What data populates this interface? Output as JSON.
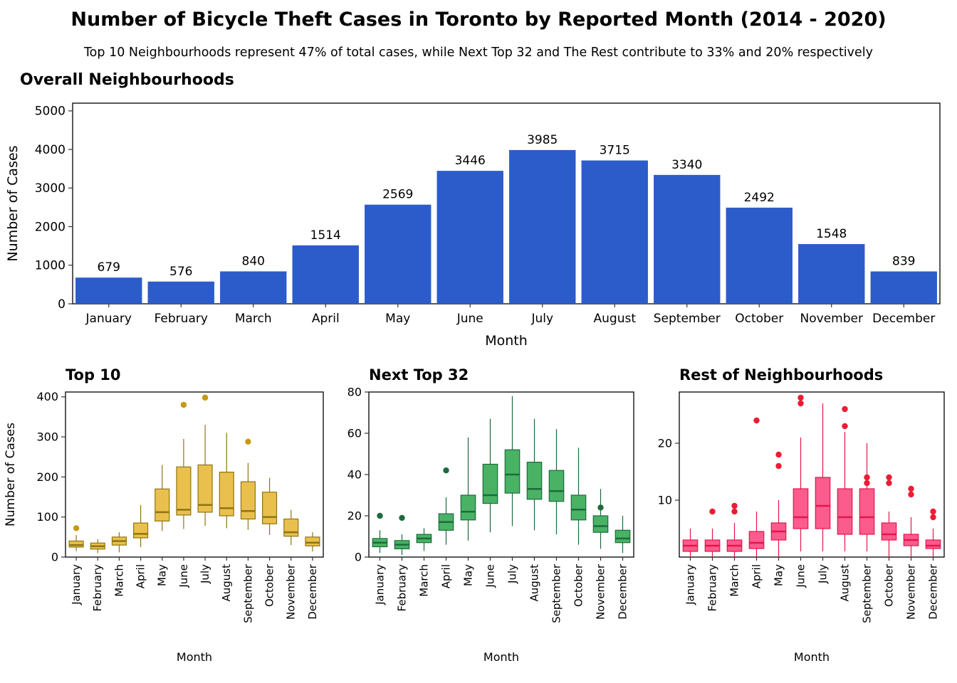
{
  "page": {
    "title": "Number of Bicycle Theft Cases in Toronto by Reported Month (2014 - 2020)",
    "subtitle": "Top 10 Neighbourhoods represent 47% of total cases, while Next Top 32 and The Rest contribute to 33% and 20% respectively"
  },
  "chart_data": [
    {
      "type": "bar",
      "title": "Overall Neighbourhoods",
      "categories": [
        "January",
        "February",
        "March",
        "April",
        "May",
        "June",
        "July",
        "August",
        "September",
        "October",
        "November",
        "December"
      ],
      "values": [
        679,
        576,
        840,
        1514,
        2569,
        3446,
        3985,
        3715,
        3340,
        2492,
        1548,
        839
      ],
      "xlabel": "Month",
      "ylabel": "Number of Cases",
      "ylim": [
        0,
        5200
      ],
      "yticks": [
        0,
        1000,
        2000,
        3000,
        4000,
        5000
      ],
      "bar_color": "#2b5cc9",
      "grid": false,
      "legend": "none"
    },
    {
      "type": "box",
      "title": "Top 10",
      "categories": [
        "January",
        "February",
        "March",
        "April",
        "May",
        "June",
        "July",
        "August",
        "September",
        "October",
        "November",
        "December"
      ],
      "xlabel": "Month",
      "ylabel": "Number of Cases",
      "ylim": [
        0,
        412
      ],
      "yticks": [
        0,
        100,
        200,
        300,
        400
      ],
      "fill": "#e9c04e",
      "stroke": "#8f7512",
      "point_color": "#c59a13",
      "stats": [
        {
          "low": 15,
          "q1": 25,
          "median": 30,
          "q3": 40,
          "high": 55,
          "outliers": [
            72
          ]
        },
        {
          "low": 10,
          "q1": 20,
          "median": 27,
          "q3": 35,
          "high": 45,
          "outliers": []
        },
        {
          "low": 12,
          "q1": 30,
          "median": 40,
          "q3": 50,
          "high": 62,
          "outliers": []
        },
        {
          "low": 25,
          "q1": 48,
          "median": 58,
          "q3": 85,
          "high": 130,
          "outliers": []
        },
        {
          "low": 65,
          "q1": 90,
          "median": 112,
          "q3": 170,
          "high": 230,
          "outliers": []
        },
        {
          "low": 70,
          "q1": 105,
          "median": 118,
          "q3": 225,
          "high": 295,
          "outliers": [
            380
          ]
        },
        {
          "low": 78,
          "q1": 112,
          "median": 130,
          "q3": 230,
          "high": 330,
          "outliers": [
            398
          ]
        },
        {
          "low": 72,
          "q1": 103,
          "median": 122,
          "q3": 212,
          "high": 310,
          "outliers": []
        },
        {
          "low": 68,
          "q1": 95,
          "median": 115,
          "q3": 188,
          "high": 235,
          "outliers": [
            288
          ]
        },
        {
          "low": 55,
          "q1": 83,
          "median": 100,
          "q3": 162,
          "high": 198,
          "outliers": []
        },
        {
          "low": 30,
          "q1": 52,
          "median": 62,
          "q3": 95,
          "high": 118,
          "outliers": []
        },
        {
          "low": 14,
          "q1": 28,
          "median": 36,
          "q3": 50,
          "high": 62,
          "outliers": []
        }
      ]
    },
    {
      "type": "box",
      "title": "Next Top 32",
      "categories": [
        "January",
        "February",
        "March",
        "April",
        "May",
        "June",
        "July",
        "August",
        "September",
        "October",
        "November",
        "December"
      ],
      "xlabel": "Month",
      "ylabel": "",
      "ylim": [
        0,
        80
      ],
      "yticks": [
        0,
        20,
        40,
        60,
        80
      ],
      "fill": "#49b265",
      "stroke": "#1d6b3c",
      "point_color": "#1d6b3c",
      "stats": [
        {
          "low": 2,
          "q1": 5,
          "median": 7,
          "q3": 9,
          "high": 13,
          "outliers": [
            20
          ]
        },
        {
          "low": 1,
          "q1": 4,
          "median": 6,
          "q3": 8,
          "high": 11,
          "outliers": [
            19
          ]
        },
        {
          "low": 3,
          "q1": 7,
          "median": 9,
          "q3": 11,
          "high": 14,
          "outliers": []
        },
        {
          "low": 6,
          "q1": 13,
          "median": 17,
          "q3": 21,
          "high": 29,
          "outliers": [
            42
          ]
        },
        {
          "low": 8,
          "q1": 18,
          "median": 22,
          "q3": 30,
          "high": 58,
          "outliers": []
        },
        {
          "low": 12,
          "q1": 26,
          "median": 30,
          "q3": 45,
          "high": 67,
          "outliers": []
        },
        {
          "low": 15,
          "q1": 31,
          "median": 40,
          "q3": 52,
          "high": 78,
          "outliers": []
        },
        {
          "low": 13,
          "q1": 28,
          "median": 33,
          "q3": 46,
          "high": 67,
          "outliers": []
        },
        {
          "low": 11,
          "q1": 27,
          "median": 32,
          "q3": 42,
          "high": 62,
          "outliers": []
        },
        {
          "low": 6,
          "q1": 18,
          "median": 23,
          "q3": 30,
          "high": 53,
          "outliers": []
        },
        {
          "low": 4,
          "q1": 12,
          "median": 15,
          "q3": 20,
          "high": 33,
          "outliers": [
            24
          ]
        },
        {
          "low": 2,
          "q1": 7,
          "median": 9,
          "q3": 13,
          "high": 20,
          "outliers": []
        }
      ]
    },
    {
      "type": "box",
      "title": "Rest of Neighbourhoods",
      "categories": [
        "January",
        "February",
        "March",
        "April",
        "May",
        "June",
        "July",
        "August",
        "September",
        "October",
        "November",
        "December"
      ],
      "xlabel": "Month",
      "ylabel": "",
      "ylim": [
        0,
        29
      ],
      "yticks": [
        10,
        20
      ],
      "fill": "#fb5c8d",
      "stroke": "#e4154b",
      "point_color": "#ed1c35",
      "stats": [
        {
          "low": 0,
          "q1": 1,
          "median": 2,
          "q3": 3,
          "high": 5,
          "outliers": []
        },
        {
          "low": 0,
          "q1": 1,
          "median": 2,
          "q3": 3,
          "high": 5,
          "outliers": [
            8
          ]
        },
        {
          "low": 0,
          "q1": 1,
          "median": 2,
          "q3": 3,
          "high": 6,
          "outliers": [
            8,
            9
          ]
        },
        {
          "low": 0,
          "q1": 1.5,
          "median": 2.5,
          "q3": 4.5,
          "high": 8,
          "outliers": [
            24
          ]
        },
        {
          "low": 0,
          "q1": 3,
          "median": 4.5,
          "q3": 6,
          "high": 10,
          "outliers": [
            16,
            18
          ]
        },
        {
          "low": 1,
          "q1": 5,
          "median": 7,
          "q3": 12,
          "high": 21,
          "outliers": [
            27,
            28
          ]
        },
        {
          "low": 1,
          "q1": 5,
          "median": 9,
          "q3": 14,
          "high": 27,
          "outliers": []
        },
        {
          "low": 1,
          "q1": 4,
          "median": 7,
          "q3": 12,
          "high": 22,
          "outliers": [
            23,
            26
          ]
        },
        {
          "low": 1,
          "q1": 4,
          "median": 7,
          "q3": 12,
          "high": 20,
          "outliers": [
            13,
            14
          ]
        },
        {
          "low": 0,
          "q1": 3,
          "median": 4,
          "q3": 6,
          "high": 8,
          "outliers": [
            13,
            14
          ]
        },
        {
          "low": 0,
          "q1": 2,
          "median": 3,
          "q3": 4,
          "high": 7,
          "outliers": [
            11,
            12
          ]
        },
        {
          "low": 0,
          "q1": 1.5,
          "median": 2,
          "q3": 3,
          "high": 5,
          "outliers": [
            7,
            8
          ]
        }
      ]
    }
  ]
}
